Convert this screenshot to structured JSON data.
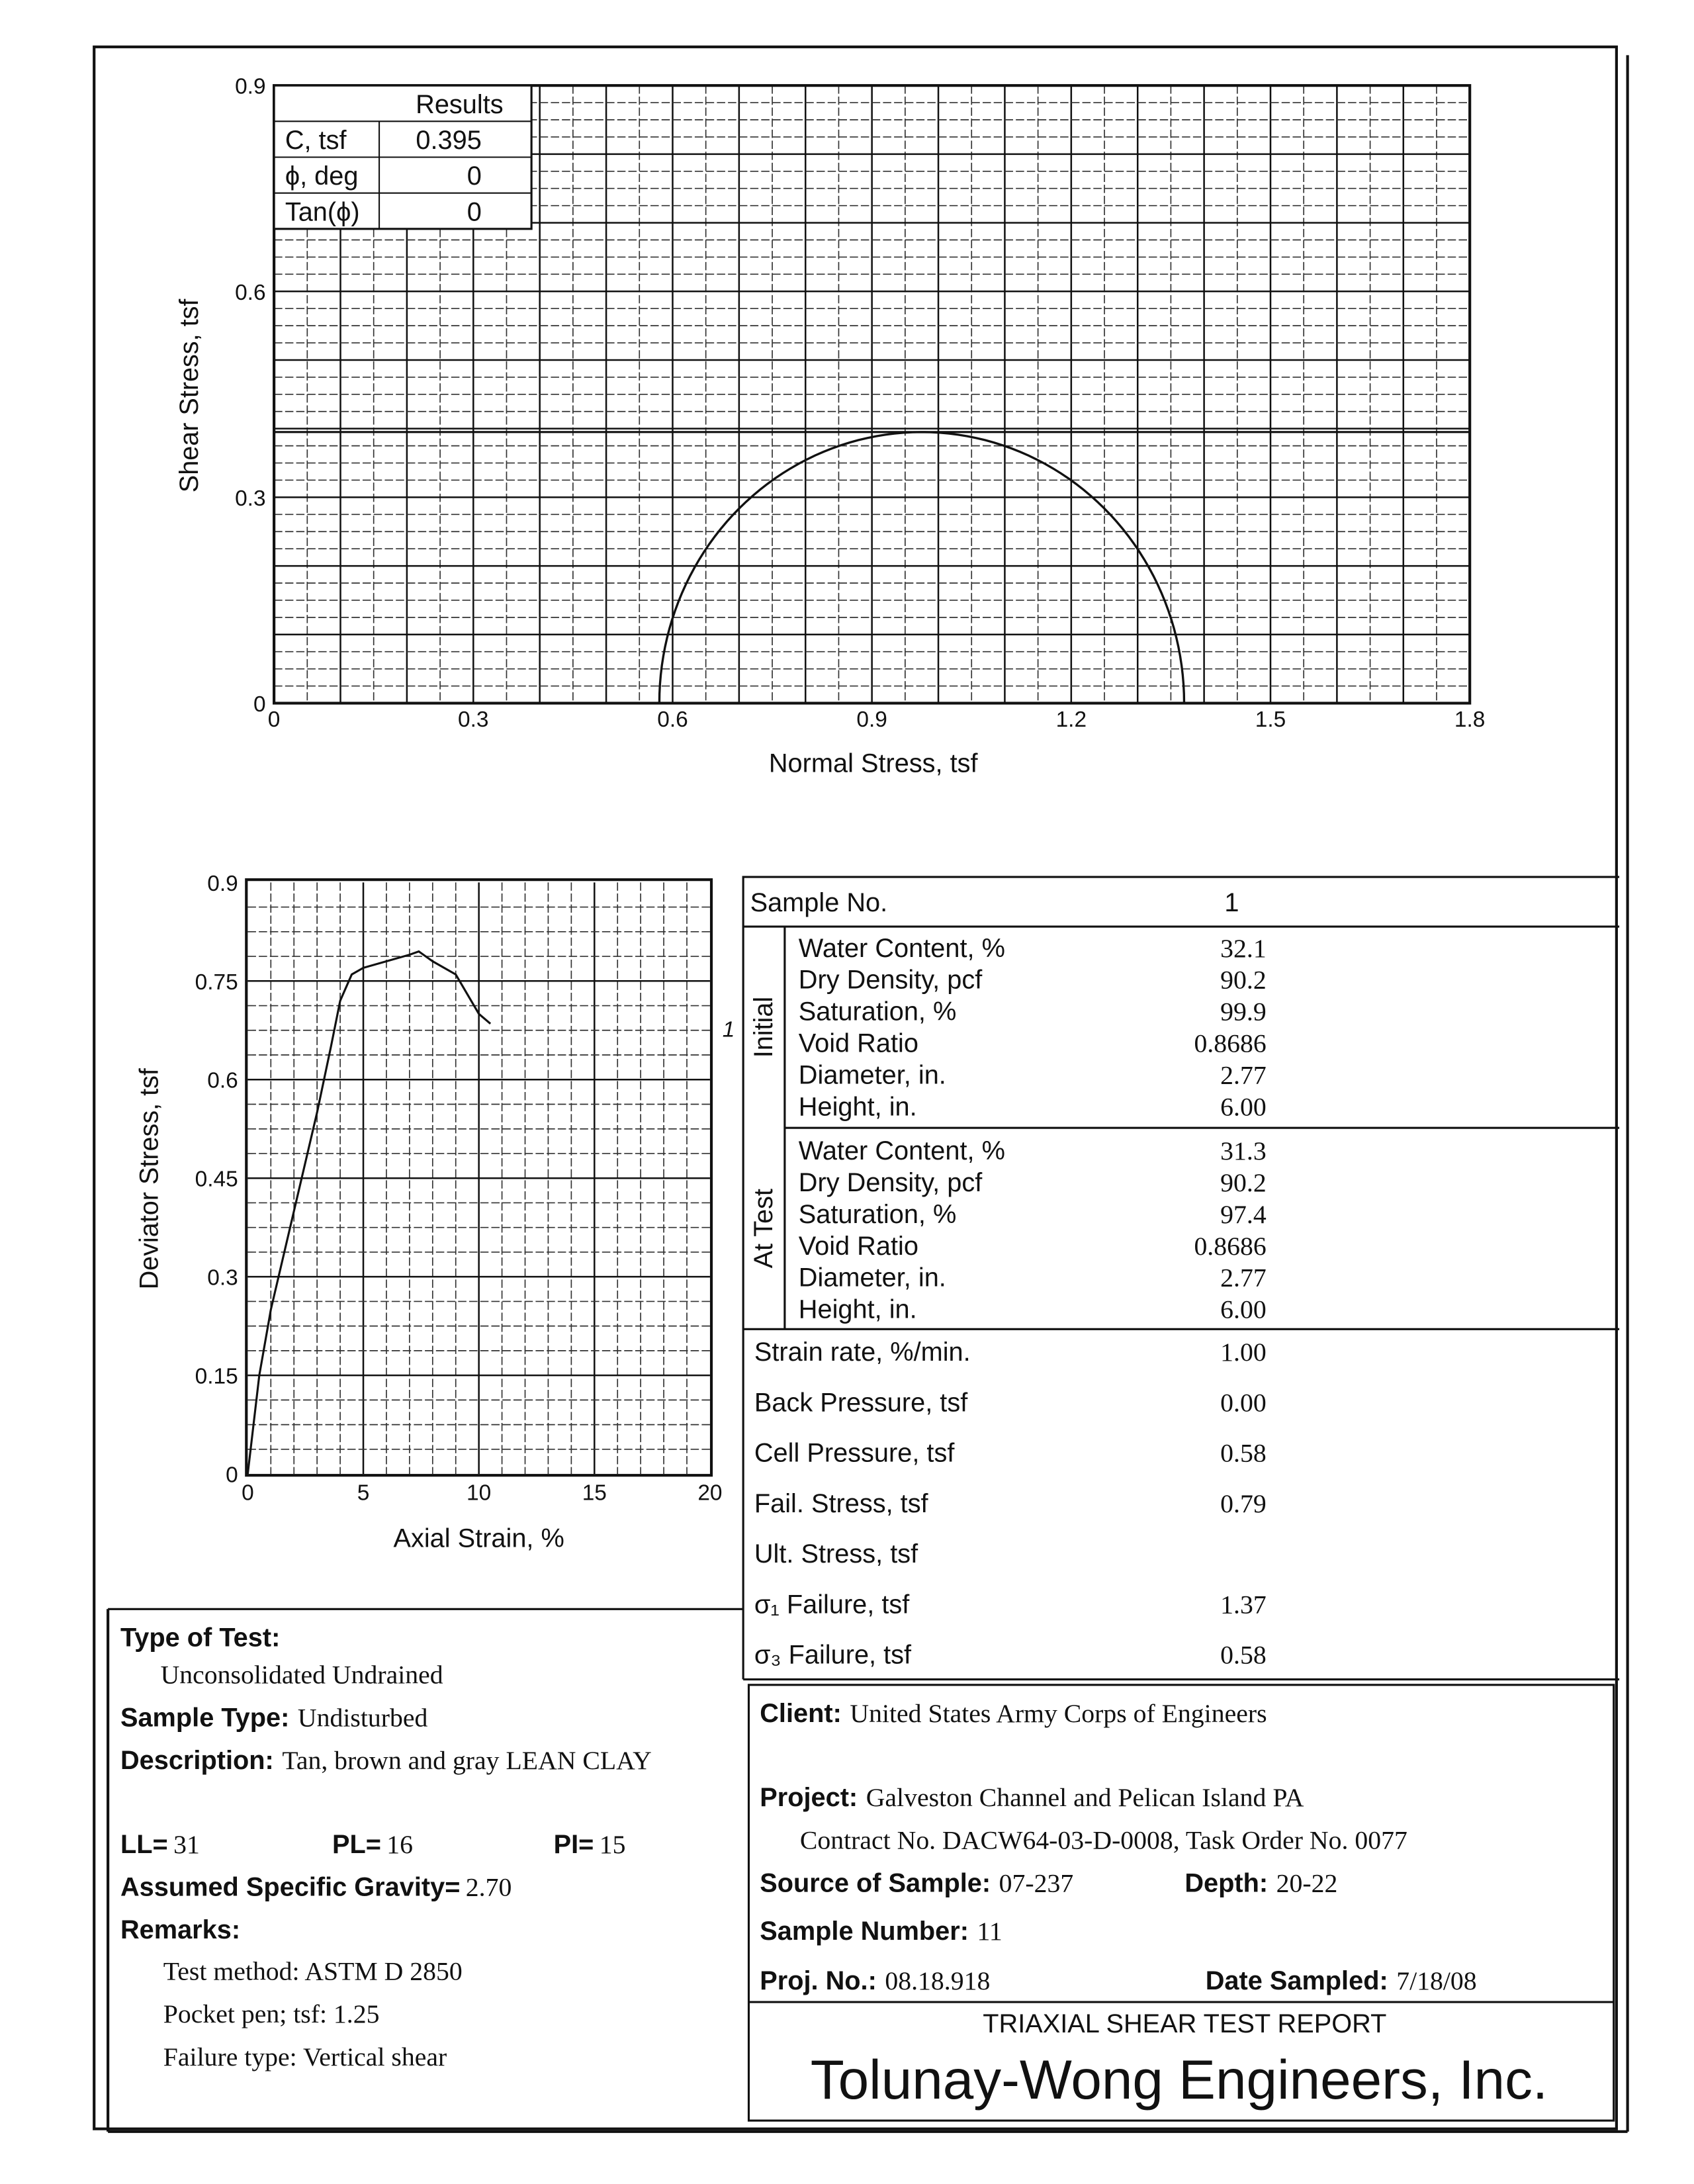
{
  "mohr_chart": {
    "chart_data": {
      "type": "line",
      "xlabel": "Normal Stress, tsf",
      "ylabel": "Shear Stress, tsf",
      "xlim": [
        0,
        1.8
      ],
      "ylim": [
        0,
        0.9
      ],
      "x_ticks": [
        "0",
        "0.3",
        "0.6",
        "0.9",
        "1.2",
        "1.5",
        "1.8"
      ],
      "y_ticks": [
        "0",
        "0.3",
        "0.6",
        "0.9"
      ],
      "grid": true,
      "circle": {
        "sigma3": 0.58,
        "sigma1": 1.37
      },
      "envelope_c": 0.395
    },
    "results": {
      "header": "Results",
      "rows": [
        {
          "label": "C, tsf",
          "value": "0.395"
        },
        {
          "label": "ϕ, deg",
          "value": "0"
        },
        {
          "label": "Tan(ϕ)",
          "value": "0"
        }
      ]
    }
  },
  "stress_strain_chart": {
    "chart_data": {
      "type": "line",
      "xlabel": "Axial Strain, %",
      "ylabel": "Deviator Stress, tsf",
      "xlim": [
        0,
        20
      ],
      "ylim": [
        0,
        0.9
      ],
      "x_ticks": [
        "0",
        "5",
        "10",
        "15",
        "20"
      ],
      "y_ticks": [
        "0",
        "0.15",
        "0.3",
        "0.45",
        "0.6",
        "0.75",
        "0.9"
      ],
      "grid": true,
      "series": [
        {
          "name": "1",
          "x": [
            0,
            0.5,
            1,
            2,
            3,
            3.6,
            4,
            4.5,
            5,
            6,
            7,
            7.4,
            8,
            9,
            9.5,
            10,
            10.5
          ],
          "y": [
            0,
            0.15,
            0.25,
            0.4,
            0.55,
            0.65,
            0.72,
            0.76,
            0.77,
            0.78,
            0.79,
            0.795,
            0.78,
            0.76,
            0.73,
            0.7,
            0.685
          ]
        }
      ]
    }
  },
  "sample": {
    "header_label": "Sample No.",
    "header_value": "1",
    "initial": {
      "label": "Initial",
      "rows": [
        [
          "Water Content, %",
          "32.1"
        ],
        [
          "Dry Density, pcf",
          "90.2"
        ],
        [
          "Saturation, %",
          "99.9"
        ],
        [
          "Void Ratio",
          "0.8686"
        ],
        [
          "Diameter, in.",
          "2.77"
        ],
        [
          "Height, in.",
          "6.00"
        ]
      ]
    },
    "at_test": {
      "label": "At Test",
      "rows": [
        [
          "Water Content, %",
          "31.3"
        ],
        [
          "Dry Density, pcf",
          "90.2"
        ],
        [
          "Saturation, %",
          "97.4"
        ],
        [
          "Void Ratio",
          "0.8686"
        ],
        [
          "Diameter, in.",
          "2.77"
        ],
        [
          "Height, in.",
          "6.00"
        ]
      ]
    },
    "other": [
      [
        "Strain rate, %/min.",
        "1.00"
      ],
      [
        "Back Pressure, tsf",
        "0.00"
      ],
      [
        "Cell Pressure, tsf",
        "0.58"
      ],
      [
        "Fail. Stress, tsf",
        "0.79"
      ],
      [
        "Ult. Stress, tsf",
        ""
      ],
      [
        "σ₁  Failure, tsf",
        "1.37"
      ],
      [
        "σ₃  Failure, tsf",
        "0.58"
      ]
    ]
  },
  "test_info": {
    "type_label": "Type of Test:",
    "type_value": "Unconsolidated Undrained",
    "sample_type_label": "Sample Type:",
    "sample_type_value": "Undisturbed",
    "description_label": "Description:",
    "description_value": "Tan, brown and gray LEAN CLAY",
    "ll_label": "LL=",
    "ll": "31",
    "pl_label": "PL=",
    "pl": "16",
    "pi_label": "PI=",
    "pi": "15",
    "gs_label": "Assumed Specific Gravity=",
    "gs": "2.70",
    "remarks_label": "Remarks:",
    "remarks": [
      "Test method: ASTM D 2850",
      "Pocket pen; tsf: 1.25",
      "Failure type: Vertical shear"
    ]
  },
  "client": {
    "client_label": "Client:",
    "client_value": "United States Army Corps of Engineers",
    "project_label": "Project:",
    "project_value": "Galveston Channel and Pelican Island PA",
    "contract": "Contract No. DACW64-03-D-0008, Task Order No. 0077",
    "source_label": "Source of Sample:",
    "source_value": "07-237",
    "depth_label": "Depth:",
    "depth_value": "20-22",
    "sample_number_label": "Sample Number:",
    "sample_number_value": "11",
    "proj_no_label": "Proj. No.:",
    "proj_no_value": "08.18.918",
    "date_label": "Date Sampled:",
    "date_value": "7/18/08",
    "report_title": "TRIAXIAL SHEAR TEST REPORT",
    "company": "Tolunay-Wong Engineers, Inc."
  }
}
